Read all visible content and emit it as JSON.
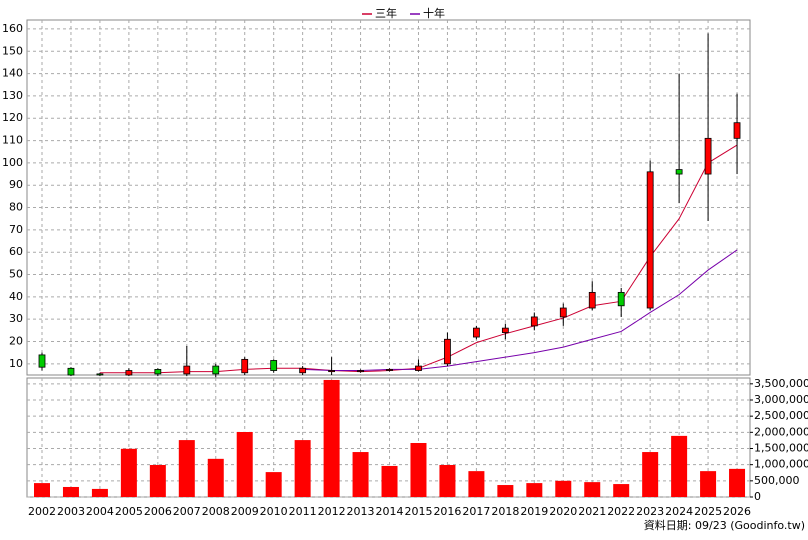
{
  "chart_data": [
    {
      "type": "candlestick",
      "open": [
        14,
        8,
        5.5,
        5,
        7.5,
        5.5,
        9,
        6,
        11.5,
        6,
        6.5,
        6.5,
        7,
        7,
        10,
        22,
        24,
        27,
        31,
        35,
        42,
        35,
        97,
        95,
        111
      ],
      "high": [
        15,
        8.5,
        6,
        8,
        8,
        18,
        10,
        13,
        12,
        9,
        13,
        7.5,
        8,
        12,
        24,
        27,
        28,
        33,
        37,
        47,
        44,
        101,
        140,
        158,
        131
      ],
      "low": [
        7,
        4.5,
        4.5,
        4.5,
        4.5,
        4.5,
        4,
        5,
        6,
        5,
        5,
        6,
        6.5,
        6.5,
        9,
        21,
        21,
        25,
        27,
        34,
        31,
        34,
        82,
        74,
        95
      ],
      "close": [
        8.5,
        5,
        5,
        7,
        5.5,
        9,
        5.5,
        12,
        7,
        8,
        7,
        7,
        7.5,
        9,
        21,
        26,
        26,
        31,
        35,
        42,
        36,
        96,
        95,
        111,
        118
      ],
      "up_color": "#ff0000",
      "down_color": "#00cc00",
      "series": [
        {
          "name": "三年",
          "color": "#cc0033",
          "values": [
            null,
            null,
            6,
            6,
            6,
            6.5,
            6.5,
            7.5,
            8,
            8,
            7,
            6.5,
            7,
            8,
            13,
            19.5,
            23.5,
            27,
            30.5,
            36,
            38,
            58,
            75,
            100,
            108
          ]
        },
        {
          "name": "十年",
          "color": "#7700aa",
          "values": [
            null,
            null,
            null,
            null,
            null,
            null,
            null,
            null,
            null,
            7.5,
            7,
            7,
            7.5,
            7.5,
            9,
            11,
            13,
            15,
            17.5,
            21,
            24.5,
            33,
            41,
            52,
            61
          ]
        }
      ],
      "ylim": [
        5,
        164
      ],
      "yticks": [
        10,
        20,
        30,
        40,
        50,
        60,
        70,
        80,
        90,
        100,
        110,
        120,
        130,
        140,
        150,
        160
      ],
      "grid": true
    },
    {
      "type": "bar",
      "categories": [
        "2002",
        "2003",
        "2004",
        "2005",
        "2006",
        "2007",
        "2008",
        "2009",
        "2010",
        "2011",
        "2012",
        "2013",
        "2014",
        "2015",
        "2016",
        "2017",
        "2018",
        "2019",
        "2020",
        "2021",
        "2022",
        "2023",
        "2024",
        "2025",
        "2026"
      ],
      "values": [
        430000,
        310000,
        250000,
        1490000,
        990000,
        1760000,
        1180000,
        2010000,
        770000,
        1760000,
        3620000,
        1390000,
        960000,
        1670000,
        990000,
        800000,
        370000,
        430000,
        500000,
        460000,
        400000,
        1390000,
        1890000,
        800000,
        870000
      ],
      "color": "#ff0000",
      "ylim": [
        0,
        3680000
      ],
      "yticks": [
        0,
        {
          "value": 500000,
          "label": "500,000"
        },
        {
          "value": 1000000,
          "label": "1,000,000"
        },
        {
          "value": 1500000,
          "label": "1,500,000"
        },
        {
          "value": 2000000,
          "label": "2,000,000"
        },
        {
          "value": 2500000,
          "label": "2,500,000"
        },
        {
          "value": 3000000,
          "label": "3,000,000"
        },
        {
          "value": 3500000,
          "label": "3,500,000"
        }
      ],
      "grid": true,
      "annotation": "資料日期: 09/23 (Goodinfo.tw)"
    }
  ]
}
